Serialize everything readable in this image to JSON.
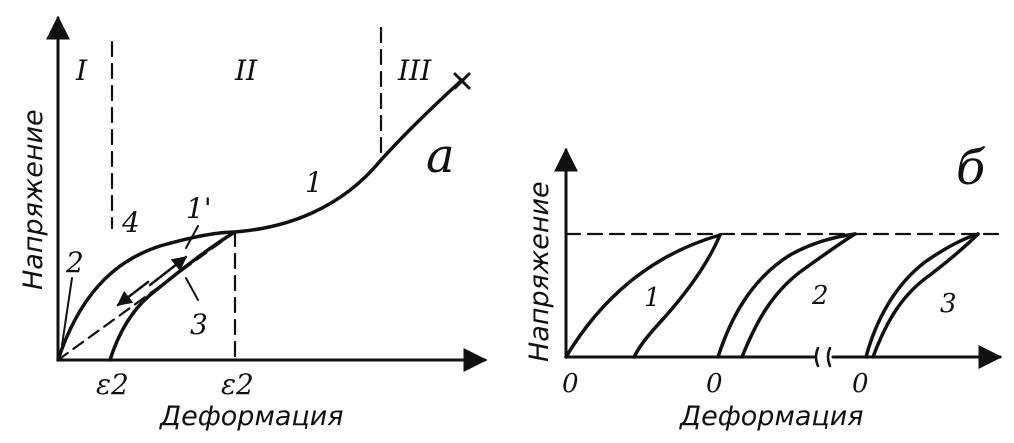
{
  "panel_a": {
    "letter": "а",
    "y_axis_label": "Напряжение",
    "x_axis_label": "Деформация",
    "regions": [
      "I",
      "II",
      "III"
    ],
    "curve_labels": [
      "1",
      "1'",
      "2",
      "3",
      "4"
    ],
    "x_ticks": [
      "ε2",
      "ε2"
    ]
  },
  "panel_b": {
    "letter": "б",
    "y_axis_label": "Напряжение",
    "x_axis_label": "Деформация",
    "curve_labels": [
      "1",
      "2",
      "3"
    ],
    "x_zero_labels": [
      "0",
      "0",
      "0"
    ]
  },
  "colors": {
    "ink": "#111111",
    "background": "#ffffff"
  }
}
